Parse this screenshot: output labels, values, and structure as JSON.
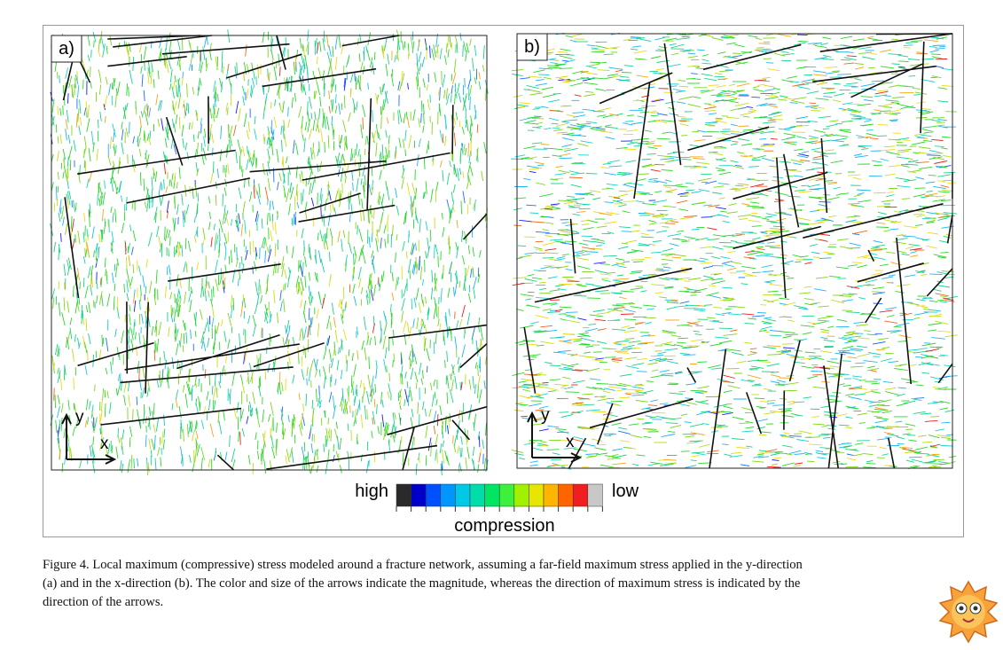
{
  "figure": {
    "panels": [
      {
        "label": "a)",
        "axis_y": "y",
        "axis_x": "x"
      },
      {
        "label": "b)",
        "axis_y": "y",
        "axis_x": "x"
      }
    ],
    "colorbar": {
      "high": "high",
      "low": "low",
      "title": "compression"
    },
    "caption": [
      "Figure 4. Local maximum (compressive) stress modeled around a fracture network, assuming a far-field maximum stress applied in the y-direction",
      "(a) and in the x-direction (b). The color and size of the arrows indicate the magnitude, whereas the direction of maximum stress is indicated by the",
      "direction of the arrows."
    ]
  }
}
